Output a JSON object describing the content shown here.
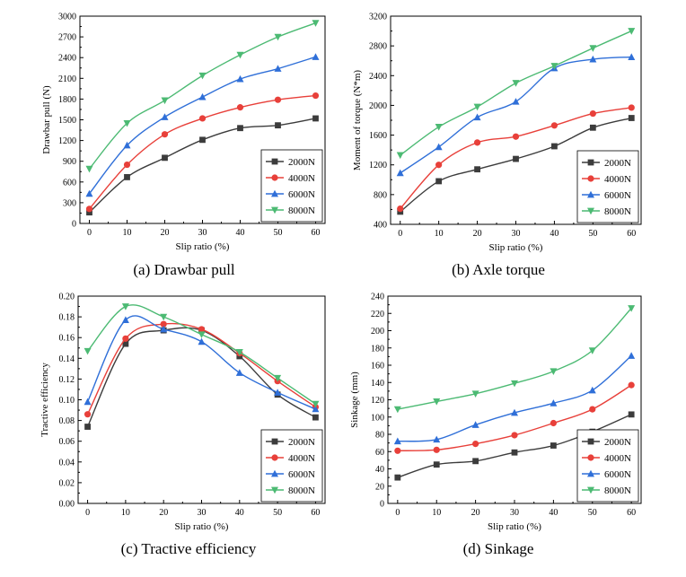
{
  "chart_data": [
    {
      "id": "a",
      "type": "line",
      "caption": "(a) Drawbar pull",
      "xlabel": "Slip ratio (%)",
      "ylabel": "Drawbar pull (N)",
      "x": [
        0,
        10,
        20,
        30,
        40,
        50,
        60
      ],
      "xlim": [
        -2.5,
        62.5
      ],
      "ylim": [
        0,
        3000
      ],
      "yticks": [
        0,
        300,
        600,
        900,
        1200,
        1500,
        1800,
        2100,
        2400,
        2700,
        3000
      ],
      "ytick_labels": [
        "0",
        "300",
        "600",
        "900",
        "1200",
        "1500",
        "1800",
        "2100",
        "2400",
        "2700",
        "3000"
      ],
      "legend_position": "bottom-right",
      "series": [
        {
          "name": "2000N",
          "values": [
            160,
            670,
            950,
            1210,
            1380,
            1420,
            1520
          ]
        },
        {
          "name": "4000N",
          "values": [
            210,
            850,
            1290,
            1520,
            1680,
            1790,
            1850
          ]
        },
        {
          "name": "6000N",
          "values": [
            430,
            1130,
            1540,
            1830,
            2090,
            2240,
            2410
          ]
        },
        {
          "name": "8000N",
          "values": [
            790,
            1450,
            1780,
            2140,
            2440,
            2700,
            2900
          ]
        }
      ]
    },
    {
      "id": "b",
      "type": "line",
      "caption": "(b) Axle torque",
      "xlabel": "Slip ratio (%)",
      "ylabel": "Moment of torque (N*m)",
      "x": [
        0,
        10,
        20,
        30,
        40,
        50,
        60
      ],
      "xlim": [
        -2.5,
        62.5
      ],
      "ylim": [
        400,
        3200
      ],
      "yticks": [
        400,
        800,
        1200,
        1600,
        2000,
        2400,
        2800,
        3200
      ],
      "ytick_labels": [
        "400",
        "800",
        "1200",
        "1600",
        "2000",
        "2400",
        "2800",
        "3200"
      ],
      "legend_position": "bottom-right",
      "series": [
        {
          "name": "2000N",
          "values": [
            570,
            980,
            1140,
            1280,
            1450,
            1700,
            1830
          ]
        },
        {
          "name": "4000N",
          "values": [
            610,
            1200,
            1500,
            1580,
            1730,
            1890,
            1970
          ]
        },
        {
          "name": "6000N",
          "values": [
            1090,
            1440,
            1840,
            2050,
            2500,
            2620,
            2650
          ]
        },
        {
          "name": "8000N",
          "values": [
            1330,
            1710,
            1980,
            2300,
            2530,
            2770,
            3000
          ]
        }
      ]
    },
    {
      "id": "c",
      "type": "line",
      "caption": "(c) Tractive efficiency",
      "xlabel": "Slip ratio (%)",
      "ylabel": "Tractive efficiency",
      "x": [
        0,
        10,
        20,
        30,
        40,
        50,
        60
      ],
      "xlim": [
        -2.5,
        62.5
      ],
      "ylim": [
        0,
        0.2
      ],
      "yticks": [
        0,
        0.02,
        0.04,
        0.06,
        0.08,
        0.1,
        0.12,
        0.14,
        0.16,
        0.18,
        0.2
      ],
      "ytick_labels": [
        "0.00",
        "0.02",
        "0.04",
        "0.06",
        "0.08",
        "0.10",
        "0.12",
        "0.14",
        "0.16",
        "0.18",
        "0.20"
      ],
      "legend_position": "bottom-right",
      "series": [
        {
          "name": "2000N",
          "values": [
            0.074,
            0.154,
            0.167,
            0.167,
            0.142,
            0.105,
            0.083
          ]
        },
        {
          "name": "4000N",
          "values": [
            0.086,
            0.159,
            0.173,
            0.168,
            0.145,
            0.118,
            0.093
          ]
        },
        {
          "name": "6000N",
          "values": [
            0.098,
            0.177,
            0.168,
            0.156,
            0.126,
            0.107,
            0.091
          ]
        },
        {
          "name": "8000N",
          "values": [
            0.147,
            0.19,
            0.18,
            0.163,
            0.146,
            0.121,
            0.096
          ]
        }
      ]
    },
    {
      "id": "d",
      "type": "line",
      "caption": "(d) Sinkage",
      "xlabel": "Slip ratio (%)",
      "ylabel": "Sinkage (mm)",
      "x": [
        0,
        10,
        20,
        30,
        40,
        50,
        60
      ],
      "xlim": [
        -2.5,
        62.5
      ],
      "ylim": [
        0,
        240
      ],
      "yticks": [
        0,
        20,
        40,
        60,
        80,
        100,
        120,
        140,
        160,
        180,
        200,
        220,
        240
      ],
      "ytick_labels": [
        "0",
        "20",
        "40",
        "60",
        "80",
        "100",
        "120",
        "140",
        "160",
        "180",
        "200",
        "220",
        "240"
      ],
      "legend_position": "bottom-right",
      "series": [
        {
          "name": "2000N",
          "values": [
            30,
            45,
            49,
            59,
            67,
            83,
            103
          ]
        },
        {
          "name": "4000N",
          "values": [
            61,
            62,
            69,
            79,
            93,
            109,
            137
          ]
        },
        {
          "name": "6000N",
          "values": [
            72,
            74,
            91,
            105,
            116,
            131,
            171
          ]
        },
        {
          "name": "8000N",
          "values": [
            109,
            118,
            127,
            139,
            153,
            177,
            226
          ]
        }
      ]
    }
  ],
  "series_style": [
    {
      "name": "2000N",
      "color": "#3c3c3c",
      "marker": "square"
    },
    {
      "name": "4000N",
      "color": "#e8403a",
      "marker": "circle"
    },
    {
      "name": "6000N",
      "color": "#2f6fd8",
      "marker": "triangle-up"
    },
    {
      "name": "8000N",
      "color": "#4cba73",
      "marker": "triangle-down"
    }
  ]
}
